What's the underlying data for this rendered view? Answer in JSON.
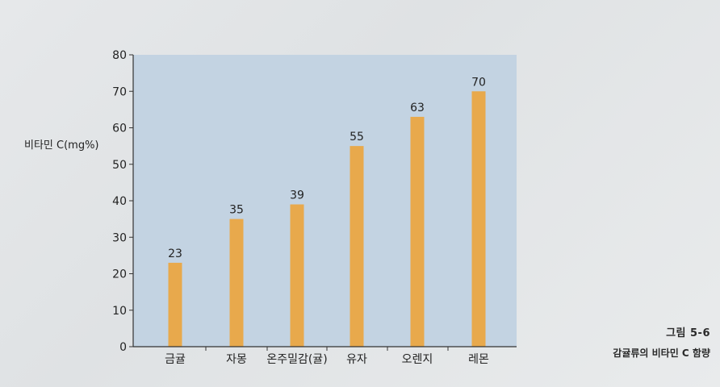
{
  "chart_data": {
    "type": "bar",
    "ylabel": "비타민 C(mg%)",
    "categories": [
      "금귤",
      "자몽",
      "온주밀감(귤)",
      "유자",
      "오렌지",
      "레몬"
    ],
    "values": [
      23,
      35,
      39,
      55,
      63,
      70
    ],
    "ylim": [
      0,
      80
    ],
    "yticks": [
      "0",
      "10",
      "20",
      "30",
      "40",
      "50",
      "60",
      "70",
      "80"
    ],
    "grid": false,
    "legend": "none",
    "colors": {
      "bar": "#e8a94c",
      "plot_background": "#c3d3e2",
      "axis": "#333333"
    }
  },
  "caption": {
    "number": "그림 5-6",
    "title": "감귤류의 비타민 C 함량"
  }
}
